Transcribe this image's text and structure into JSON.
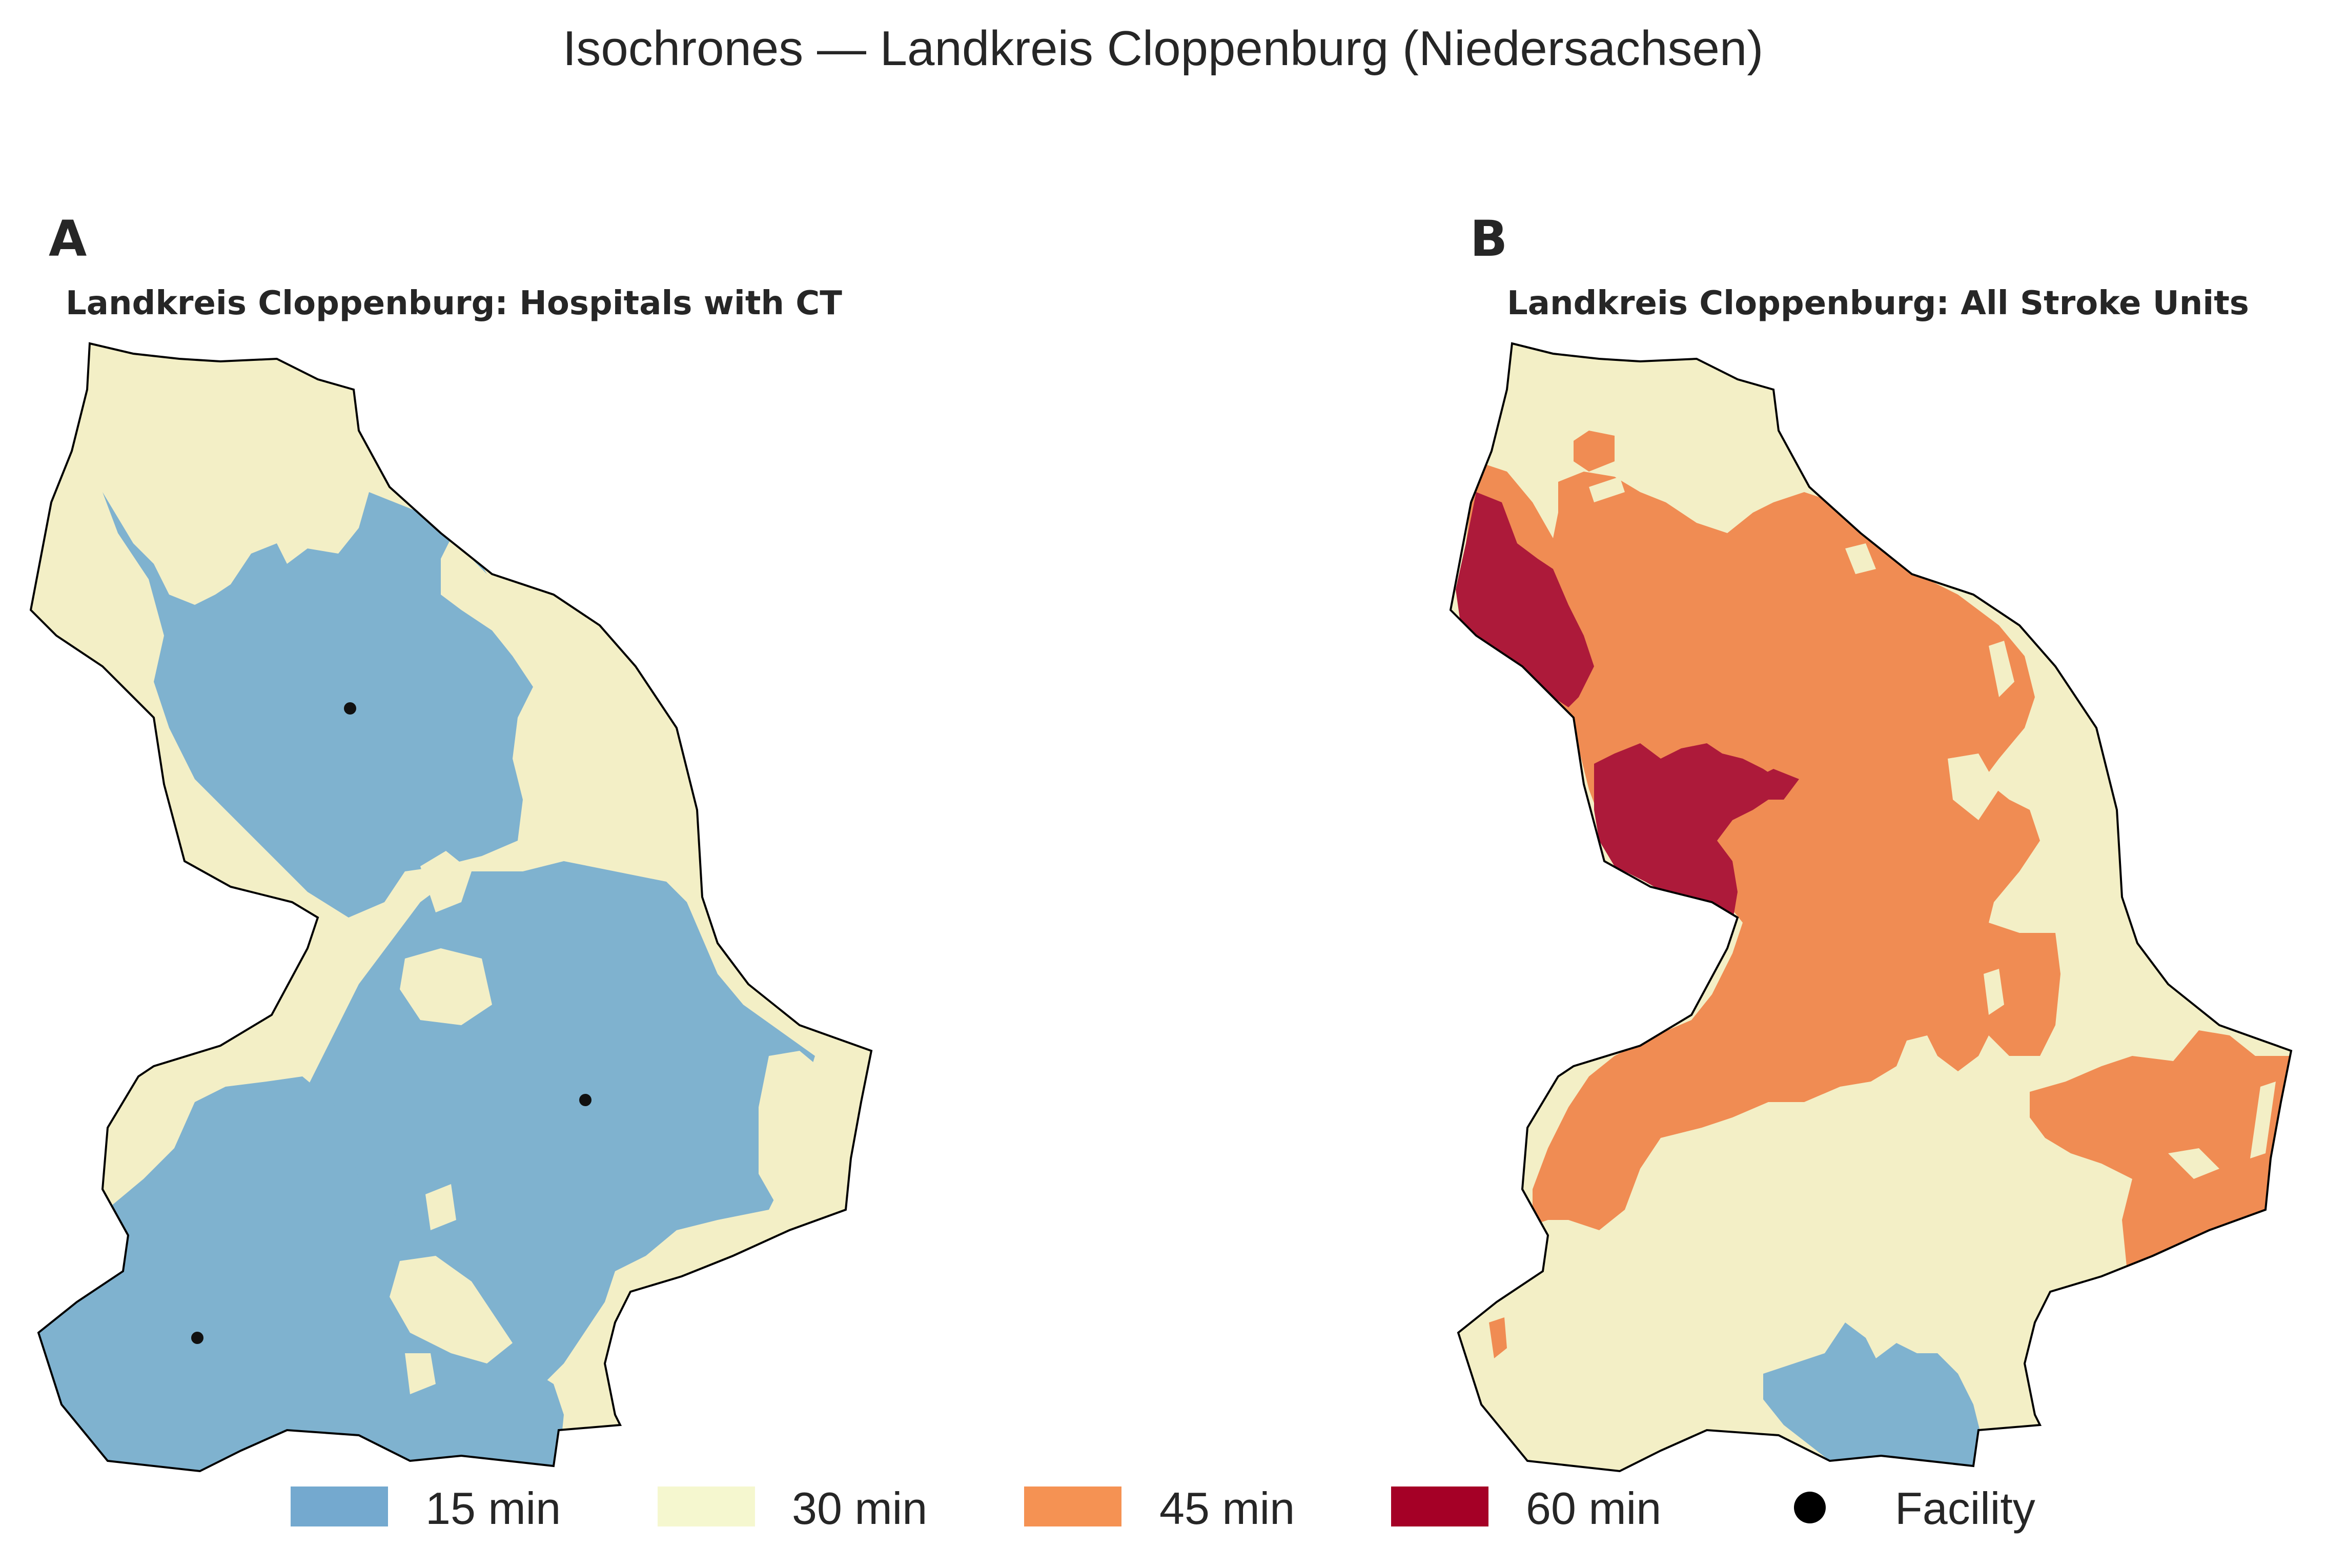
{
  "figure": {
    "title": "Isochrones — Landkreis Cloppenburg (Niedersachsen)"
  },
  "panels": [
    {
      "letter": "A",
      "title": "Landkreis Cloppenburg: Hospitals with CT",
      "facilities": 3
    },
    {
      "letter": "B",
      "title": "Landkreis Cloppenburg: All Stroke Units",
      "facilities": 0
    }
  ],
  "legend": {
    "items": [
      {
        "label": "15 min",
        "color": "#74a9cf"
      },
      {
        "label": "30 min",
        "color": "#f5f7cf"
      },
      {
        "label": "45 min",
        "color": "#f59253"
      },
      {
        "label": "60 min",
        "color": "#a50026"
      },
      {
        "label": "Facility",
        "color": "#000000"
      }
    ]
  },
  "colors": {
    "zone_15": "#7fb2cf",
    "zone_30": "#f3efc6",
    "zone_45": "#f08c53",
    "zone_60": "#ad1a3a",
    "boundary": "#000000",
    "facility": "#111111"
  }
}
